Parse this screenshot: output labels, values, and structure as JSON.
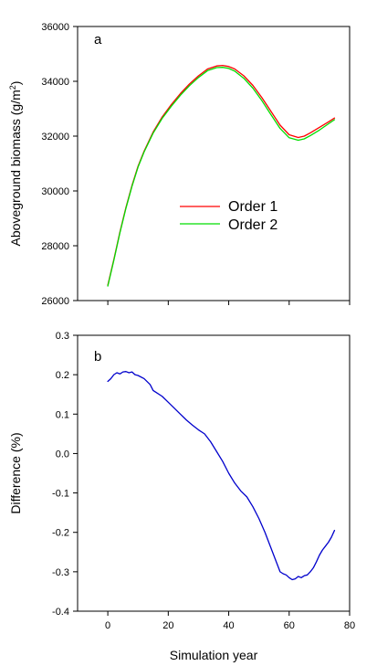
{
  "chart_data": [
    {
      "type": "line",
      "panel_label": "a",
      "title": "",
      "xlabel": "",
      "ylabel": "Aboveground biomass (g/m",
      "ylabel_superscript": "2",
      "ylabel_close": ")",
      "xlim": [
        -10,
        80
      ],
      "ylim": [
        26000,
        36000
      ],
      "xticks": [
        0,
        20,
        40,
        60,
        80
      ],
      "yticks": [
        26000,
        28000,
        30000,
        32000,
        34000,
        36000
      ],
      "show_x_tick_labels": false,
      "grid": false,
      "legend_position": "center-right",
      "series": [
        {
          "name": "Order 1",
          "color": "#ff0000",
          "x": [
            0,
            2,
            4,
            6,
            8,
            10,
            12,
            15,
            18,
            21,
            24,
            27,
            30,
            33,
            36,
            38,
            40,
            42,
            45,
            48,
            51,
            54,
            57,
            60,
            63,
            65,
            67,
            70,
            73,
            75
          ],
          "y": [
            26560,
            27500,
            28500,
            29400,
            30200,
            30900,
            31450,
            32150,
            32700,
            33150,
            33550,
            33900,
            34200,
            34450,
            34560,
            34580,
            34540,
            34450,
            34200,
            33850,
            33400,
            32900,
            32400,
            32050,
            31950,
            32000,
            32120,
            32320,
            32520,
            32660
          ]
        },
        {
          "name": "Order 2",
          "color": "#00dd00",
          "x": [
            0,
            2,
            4,
            6,
            8,
            10,
            12,
            15,
            18,
            21,
            24,
            27,
            30,
            33,
            36,
            38,
            40,
            42,
            45,
            48,
            51,
            54,
            57,
            60,
            63,
            65,
            67,
            70,
            73,
            75
          ],
          "y": [
            26530,
            27470,
            28470,
            29370,
            30170,
            30870,
            31420,
            32110,
            32650,
            33090,
            33490,
            33840,
            34140,
            34390,
            34500,
            34510,
            34470,
            34370,
            34110,
            33750,
            33290,
            32780,
            32280,
            31940,
            31850,
            31900,
            32020,
            32220,
            32450,
            32600
          ]
        }
      ]
    },
    {
      "type": "line",
      "panel_label": "b",
      "title": "",
      "xlabel": "Simulation year",
      "ylabel": "Difference (%)",
      "xlim": [
        -10,
        80
      ],
      "ylim": [
        -0.4,
        0.3
      ],
      "xticks": [
        0,
        20,
        40,
        60,
        80
      ],
      "yticks": [
        -0.4,
        -0.3,
        -0.2,
        -0.1,
        0.0,
        0.1,
        0.2,
        0.3
      ],
      "ytick_labels": [
        "-0.4",
        "-0.3",
        "-0.2",
        "-0.1",
        "0.0",
        "0.1",
        "0.2",
        "0.3"
      ],
      "grid": false,
      "series": [
        {
          "color": "#0000cc",
          "x": [
            0,
            1,
            2,
            3,
            4,
            5,
            6,
            7,
            8,
            9,
            10,
            12,
            14,
            15,
            16,
            18,
            20,
            22,
            24,
            26,
            28,
            30,
            32,
            34,
            36,
            38,
            40,
            42,
            44,
            46,
            48,
            50,
            52,
            54,
            56,
            57,
            58,
            59,
            60,
            61,
            62,
            63,
            64,
            65,
            66,
            67,
            68,
            69,
            70,
            71,
            72,
            73,
            74,
            75
          ],
          "y": [
            0.183,
            0.19,
            0.2,
            0.205,
            0.202,
            0.207,
            0.208,
            0.205,
            0.207,
            0.2,
            0.198,
            0.19,
            0.175,
            0.16,
            0.155,
            0.145,
            0.13,
            0.115,
            0.1,
            0.085,
            0.072,
            0.06,
            0.05,
            0.03,
            0.005,
            -0.02,
            -0.05,
            -0.075,
            -0.095,
            -0.11,
            -0.135,
            -0.165,
            -0.2,
            -0.24,
            -0.28,
            -0.3,
            -0.305,
            -0.308,
            -0.315,
            -0.32,
            -0.318,
            -0.312,
            -0.315,
            -0.31,
            -0.308,
            -0.3,
            -0.29,
            -0.275,
            -0.258,
            -0.245,
            -0.235,
            -0.225,
            -0.212,
            -0.195
          ]
        }
      ]
    }
  ]
}
